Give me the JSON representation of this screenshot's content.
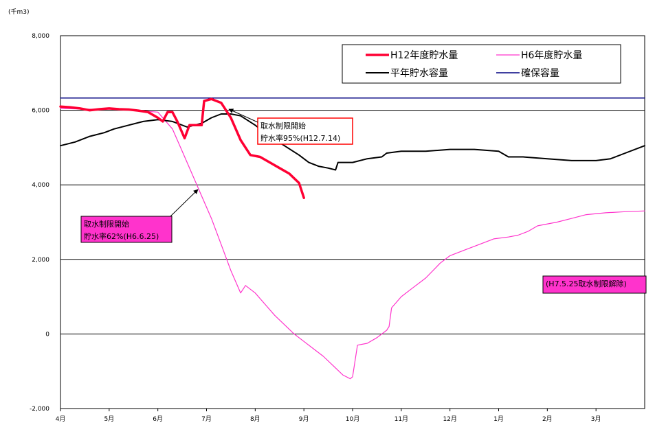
{
  "chart_data": {
    "type": "line",
    "unit_label": "(千m3)",
    "ylim": [
      -2000,
      8000
    ],
    "yticks": [
      8000,
      6000,
      4000,
      2000,
      0,
      -2000
    ],
    "ytick_labels": [
      "8,000",
      "6,000",
      "4,000",
      "2,000",
      "0",
      "-2,000"
    ],
    "months": [
      "4月",
      "5月",
      "6月",
      "7月",
      "8月",
      "9月",
      "10月",
      "11月",
      "12月",
      "1月",
      "2月",
      "3月"
    ],
    "xlim": [
      0,
      12
    ],
    "grid": true,
    "legend": {
      "position": "top-right"
    },
    "series": [
      {
        "name": "H12年度貯水量",
        "color": "#ff0033",
        "width": 3.5,
        "points": [
          [
            0,
            6100
          ],
          [
            0.2,
            6080
          ],
          [
            0.4,
            6050
          ],
          [
            0.6,
            6000
          ],
          [
            0.8,
            6030
          ],
          [
            1,
            6050
          ],
          [
            1.2,
            6030
          ],
          [
            1.4,
            6020
          ],
          [
            1.6,
            5990
          ],
          [
            1.8,
            5950
          ],
          [
            2.0,
            5800
          ],
          [
            2.1,
            5700
          ],
          [
            2.2,
            5950
          ],
          [
            2.3,
            5950
          ],
          [
            2.4,
            5700
          ],
          [
            2.55,
            5250
          ],
          [
            2.65,
            5600
          ],
          [
            2.9,
            5600
          ],
          [
            2.95,
            6250
          ],
          [
            3.1,
            6300
          ],
          [
            3.3,
            6200
          ],
          [
            3.5,
            5800
          ],
          [
            3.7,
            5200
          ],
          [
            3.9,
            4800
          ],
          [
            4.1,
            4750
          ],
          [
            4.3,
            4600
          ],
          [
            4.5,
            4450
          ],
          [
            4.7,
            4300
          ],
          [
            4.9,
            4050
          ],
          [
            5.0,
            3650
          ]
        ]
      },
      {
        "name": "H6年度貯水量",
        "color": "#ff33cc",
        "width": 1.2,
        "points": [
          [
            0,
            6050
          ],
          [
            0.5,
            6030
          ],
          [
            1,
            6030
          ],
          [
            1.5,
            6000
          ],
          [
            2,
            5950
          ],
          [
            2.3,
            5500
          ],
          [
            2.5,
            4900
          ],
          [
            2.7,
            4300
          ],
          [
            2.9,
            3700
          ],
          [
            3.1,
            3100
          ],
          [
            3.3,
            2400
          ],
          [
            3.5,
            1700
          ],
          [
            3.7,
            1100
          ],
          [
            3.8,
            1300
          ],
          [
            4.0,
            1100
          ],
          [
            4.2,
            800
          ],
          [
            4.4,
            500
          ],
          [
            4.6,
            250
          ],
          [
            4.8,
            0
          ],
          [
            5.0,
            -200
          ],
          [
            5.2,
            -400
          ],
          [
            5.4,
            -600
          ],
          [
            5.6,
            -850
          ],
          [
            5.8,
            -1100
          ],
          [
            5.95,
            -1200
          ],
          [
            6.0,
            -1150
          ],
          [
            6.1,
            -300
          ],
          [
            6.3,
            -250
          ],
          [
            6.5,
            -100
          ],
          [
            6.7,
            100
          ],
          [
            6.75,
            200
          ],
          [
            6.8,
            700
          ],
          [
            7.0,
            1000
          ],
          [
            7.2,
            1200
          ],
          [
            7.5,
            1500
          ],
          [
            7.8,
            1900
          ],
          [
            8.0,
            2100
          ],
          [
            8.3,
            2250
          ],
          [
            8.6,
            2400
          ],
          [
            8.9,
            2550
          ],
          [
            9.2,
            2600
          ],
          [
            9.4,
            2650
          ],
          [
            9.6,
            2750
          ],
          [
            9.8,
            2900
          ],
          [
            10.2,
            3000
          ],
          [
            10.5,
            3100
          ],
          [
            10.8,
            3200
          ],
          [
            11.2,
            3250
          ],
          [
            11.6,
            3280
          ],
          [
            12,
            3300
          ]
        ]
      },
      {
        "name": "平年貯水容量",
        "color": "#000000",
        "width": 2,
        "points": [
          [
            0,
            5050
          ],
          [
            0.3,
            5150
          ],
          [
            0.6,
            5300
          ],
          [
            0.9,
            5400
          ],
          [
            1.1,
            5500
          ],
          [
            1.4,
            5600
          ],
          [
            1.7,
            5700
          ],
          [
            2.0,
            5750
          ],
          [
            2.3,
            5700
          ],
          [
            2.6,
            5550
          ],
          [
            2.9,
            5650
          ],
          [
            3.1,
            5800
          ],
          [
            3.3,
            5900
          ],
          [
            3.5,
            5900
          ],
          [
            3.7,
            5850
          ],
          [
            4.0,
            5600
          ],
          [
            4.3,
            5300
          ],
          [
            4.6,
            5050
          ],
          [
            4.9,
            4800
          ],
          [
            5.1,
            4600
          ],
          [
            5.3,
            4500
          ],
          [
            5.5,
            4450
          ],
          [
            5.65,
            4400
          ],
          [
            5.7,
            4600
          ],
          [
            6.0,
            4600
          ],
          [
            6.3,
            4700
          ],
          [
            6.6,
            4750
          ],
          [
            6.7,
            4850
          ],
          [
            7,
            4900
          ],
          [
            7.5,
            4900
          ],
          [
            8,
            4950
          ],
          [
            8.5,
            4950
          ],
          [
            9,
            4900
          ],
          [
            9.2,
            4750
          ],
          [
            9.5,
            4750
          ],
          [
            10,
            4700
          ],
          [
            10.5,
            4650
          ],
          [
            11,
            4650
          ],
          [
            11.3,
            4700
          ],
          [
            11.6,
            4850
          ],
          [
            12,
            5050
          ]
        ]
      },
      {
        "name": "確保容量",
        "color": "#000080",
        "width": 1.5,
        "points": [
          [
            0,
            6330
          ],
          [
            12,
            6330
          ]
        ]
      }
    ],
    "annotations": [
      {
        "lines": [
          "取水制限開始",
          "貯水率95%(H12.7.14)"
        ],
        "style": "boxed-red"
      },
      {
        "lines": [
          "取水制限開始",
          "貯水率62%(H6.6.25)"
        ],
        "style": "filled-magenta"
      },
      {
        "lines": [
          "(H7.5.25取水制限解除)"
        ],
        "style": "filled-magenta"
      }
    ]
  }
}
